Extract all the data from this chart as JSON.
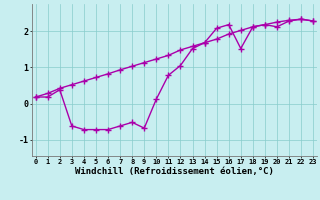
{
  "xlabel": "Windchill (Refroidissement éolien,°C)",
  "bg_color": "#c8eef0",
  "grid_color": "#88cccc",
  "line_color": "#aa00aa",
  "line1_x": [
    0,
    1,
    2,
    3,
    4,
    5,
    6,
    7,
    8,
    9,
    10,
    11,
    12,
    13,
    14,
    15,
    16,
    17,
    18,
    19,
    20,
    21,
    22,
    23
  ],
  "line1_y": [
    0.18,
    0.28,
    0.42,
    0.52,
    0.62,
    0.72,
    0.82,
    0.93,
    1.03,
    1.13,
    1.23,
    1.33,
    1.48,
    1.58,
    1.68,
    1.78,
    1.92,
    2.02,
    2.12,
    2.18,
    2.25,
    2.3,
    2.33,
    2.28
  ],
  "line2_x": [
    0,
    1,
    2,
    3,
    4,
    5,
    6,
    7,
    8,
    9,
    10,
    11,
    12,
    13,
    14,
    15,
    16,
    17,
    18,
    19,
    20,
    21,
    22,
    23
  ],
  "line2_y": [
    0.18,
    0.18,
    0.38,
    -0.62,
    -0.72,
    -0.72,
    -0.72,
    -0.62,
    -0.52,
    -0.68,
    0.12,
    0.78,
    1.05,
    1.52,
    1.68,
    2.08,
    2.18,
    1.52,
    2.12,
    2.18,
    2.12,
    2.28,
    2.33,
    2.28
  ],
  "xlim": [
    -0.3,
    23.3
  ],
  "ylim": [
    -1.45,
    2.75
  ],
  "yticks": [
    -1,
    0,
    1,
    2
  ],
  "xticks": [
    0,
    1,
    2,
    3,
    4,
    5,
    6,
    7,
    8,
    9,
    10,
    11,
    12,
    13,
    14,
    15,
    16,
    17,
    18,
    19,
    20,
    21,
    22,
    23
  ],
  "marker": "+",
  "markersize": 4,
  "linewidth": 1.0,
  "tick_fontsize": 5.0,
  "xlabel_fontsize": 6.5
}
